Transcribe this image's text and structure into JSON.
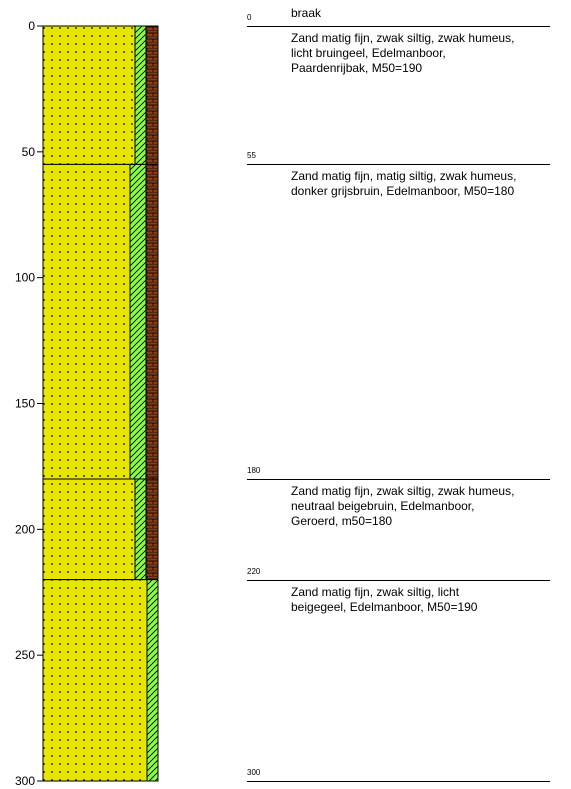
{
  "axis": {
    "ticks": [
      0,
      50,
      100,
      150,
      200,
      250,
      300
    ]
  },
  "layers": [
    {
      "top": 0,
      "bottom": 55,
      "depth_label": "0",
      "description": "braak",
      "lithology": "Zand matig fijn, zwak siltig, zwak humeus,\nlicht bruingeel, Edelmanboor,\nPaardenrijbak, M50=190",
      "silt": "zwak",
      "humus": "zwak"
    },
    {
      "top": 55,
      "bottom": 180,
      "depth_label": "55",
      "description": "",
      "lithology": "Zand matig fijn, matig siltig, zwak humeus,\ndonker grijsbruin, Edelmanboor, M50=180",
      "silt": "matig",
      "humus": "zwak"
    },
    {
      "top": 180,
      "bottom": 220,
      "depth_label": "180",
      "description": "",
      "lithology": "Zand matig fijn, zwak siltig, zwak humeus,\nneutraal beigebruin, Edelmanboor,\nGeroerd, m50=180",
      "silt": "zwak",
      "humus": "zwak"
    },
    {
      "top": 220,
      "bottom": 300,
      "depth_label": "220",
      "description": "",
      "lithology": "Zand matig fijn, zwak siltig, licht\nbeigegeel, Edelmanboor, M50=190",
      "silt": "zwak",
      "humus": "geen"
    }
  ],
  "bottom_label": "300",
  "colors": {
    "sand": "#e6e600",
    "silt": "#88ff44",
    "humus": "#8b3a1a"
  }
}
